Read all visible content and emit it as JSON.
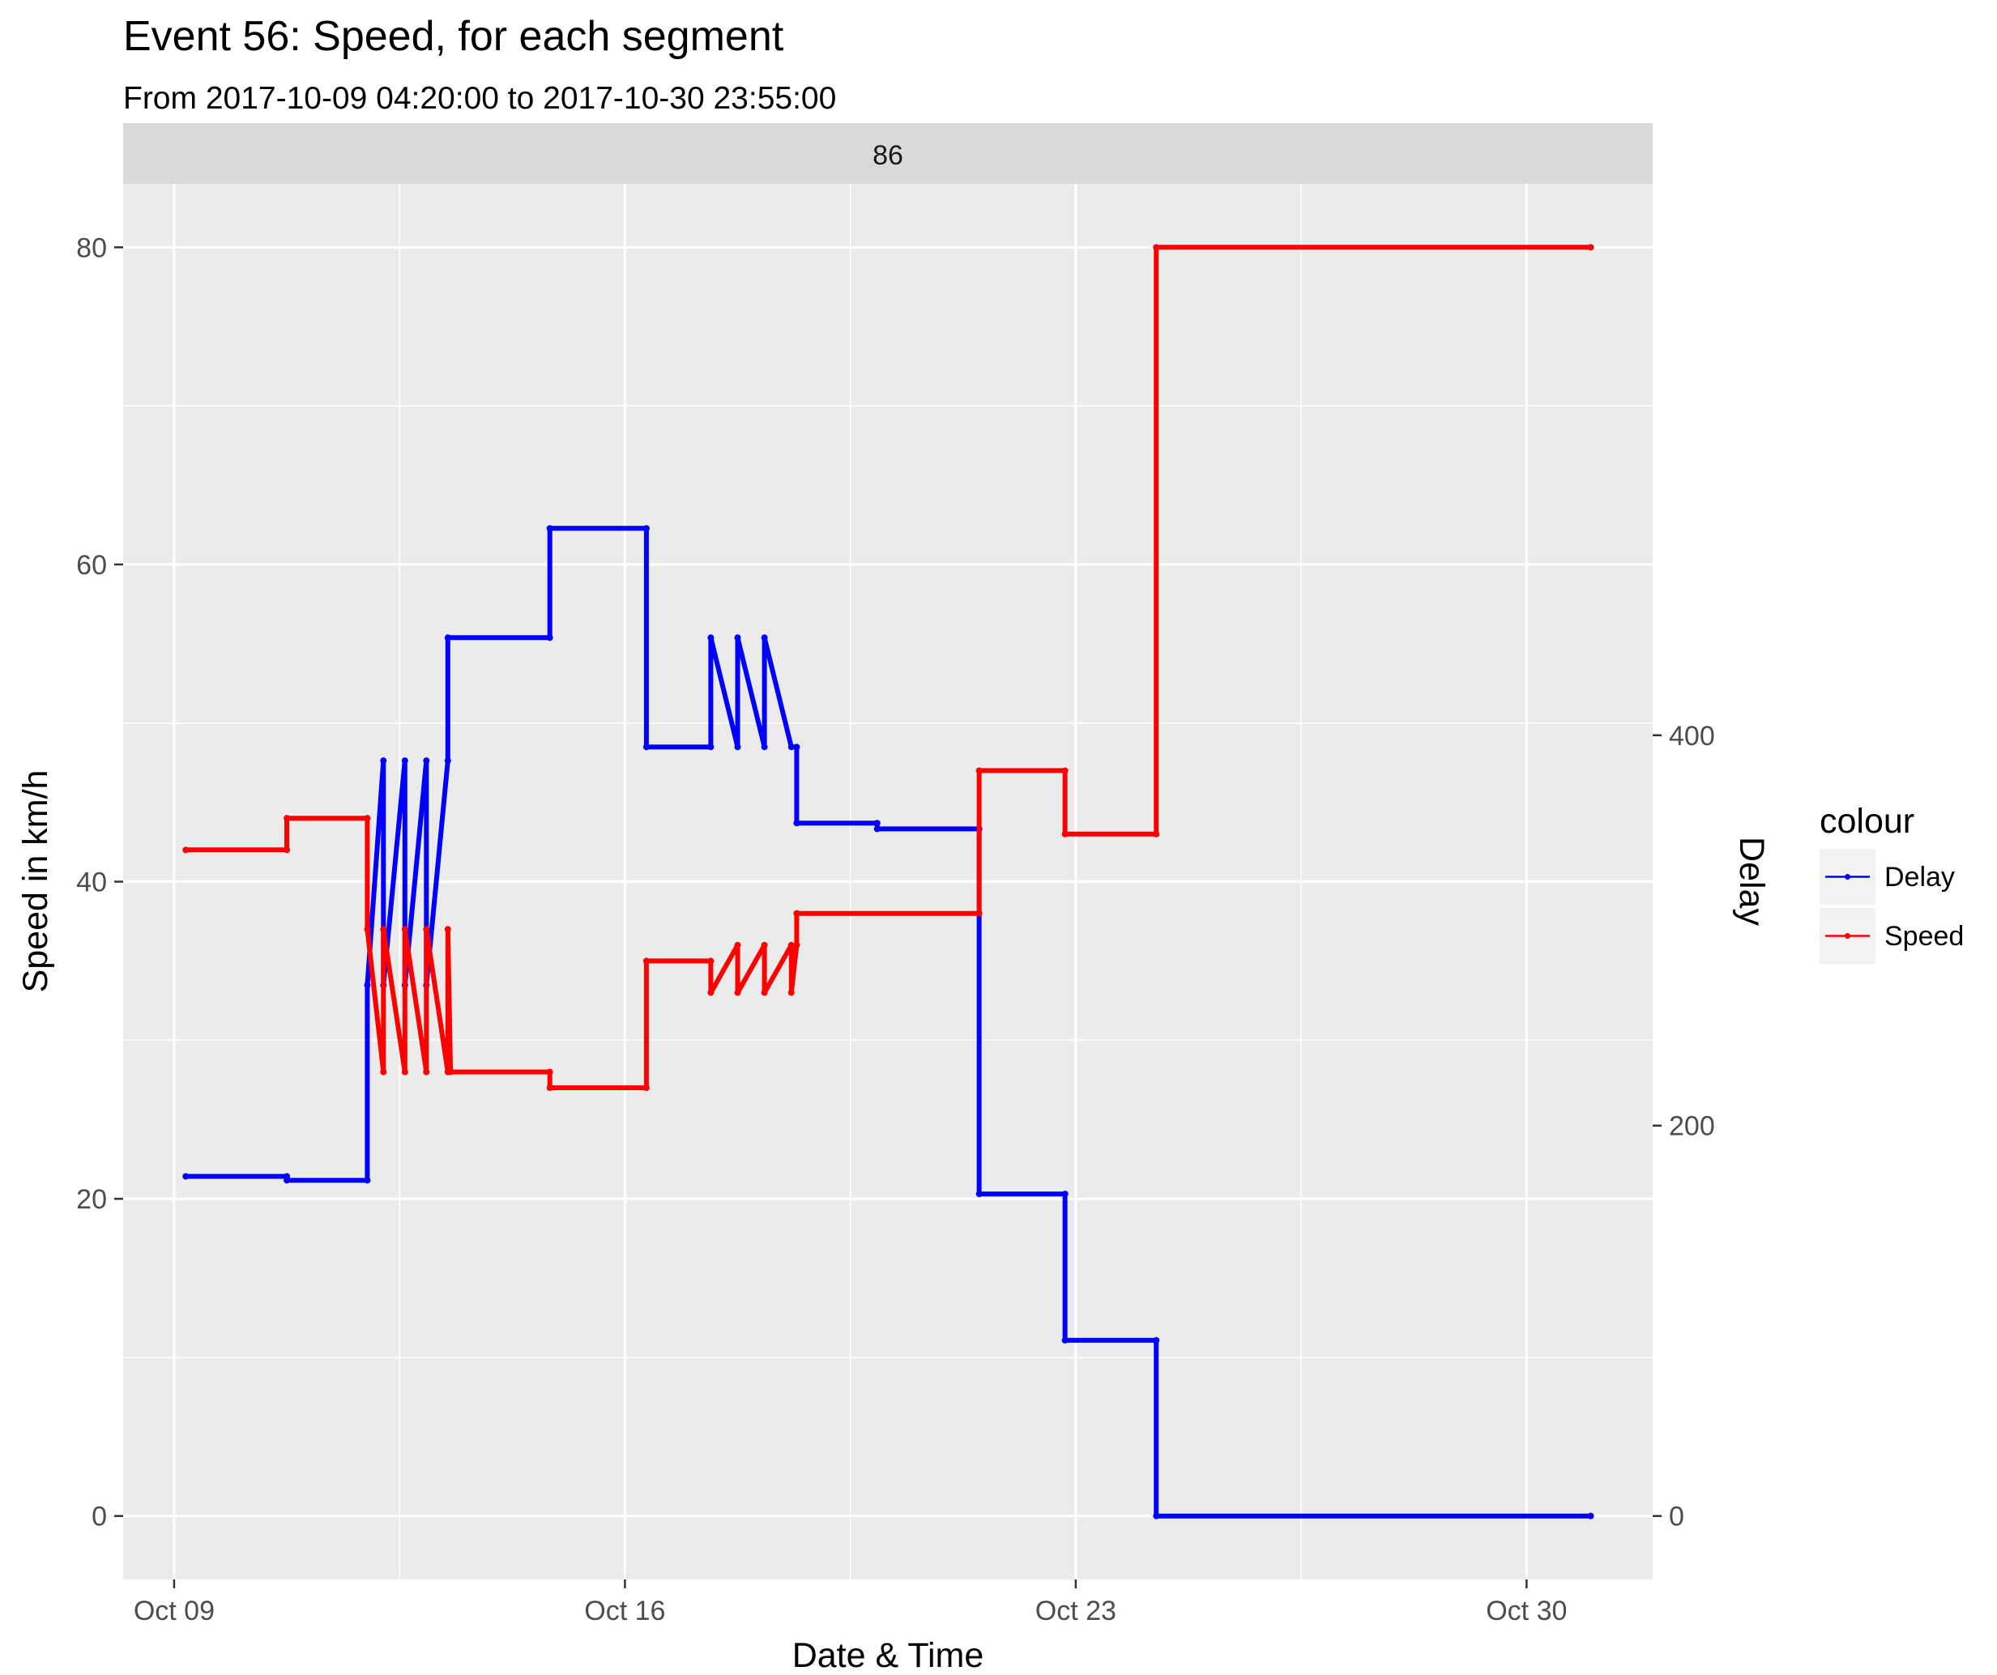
{
  "chart_data": {
    "type": "line",
    "title": "Event 56: Speed, for each segment",
    "subtitle": "From 2017-10-09 04:20:00 to 2017-10-30 23:55:00",
    "facet_label": "86",
    "xlabel": "Date & Time",
    "ylabel": "Speed in km/h",
    "y2label": "Delay",
    "x_ticks": [
      "Oct 09",
      "Oct 16",
      "Oct 23",
      "Oct 30"
    ],
    "x_tick_dates": [
      "2017-10-09",
      "2017-10-16",
      "2017-10-23",
      "2017-10-30"
    ],
    "xlim": [
      "2017-10-08 05:00",
      "2017-10-31 23:00"
    ],
    "y_ticks": [
      "0",
      "20",
      "40",
      "60",
      "80"
    ],
    "ylim": [
      -4,
      84
    ],
    "y2_ticks": [
      "0",
      "200",
      "400"
    ],
    "y2lim": [
      -32.5,
      682.5
    ],
    "grid": true,
    "legend": {
      "title": "colour",
      "position": "right",
      "entries": [
        {
          "label": "Delay",
          "color": "#0000ff"
        },
        {
          "label": "Speed",
          "color": "#ff0000"
        }
      ]
    },
    "series": [
      {
        "name": "Speed",
        "axis": "left",
        "color": "#ff0000",
        "points": [
          [
            "2017-10-09 04:20",
            42
          ],
          [
            "2017-10-10 18:00",
            42
          ],
          [
            "2017-10-10 18:00",
            44
          ],
          [
            "2017-10-12 00:00",
            44
          ],
          [
            "2017-10-12 00:00",
            37
          ],
          [
            "2017-10-12 06:00",
            28
          ],
          [
            "2017-10-12 06:00",
            37
          ],
          [
            "2017-10-12 14:00",
            28
          ],
          [
            "2017-10-12 14:00",
            37
          ],
          [
            "2017-10-12 22:00",
            28
          ],
          [
            "2017-10-12 22:00",
            37
          ],
          [
            "2017-10-13 06:00",
            28
          ],
          [
            "2017-10-13 06:00",
            37
          ],
          [
            "2017-10-13 07:00",
            28
          ],
          [
            "2017-10-14 20:00",
            28
          ],
          [
            "2017-10-14 20:00",
            27
          ],
          [
            "2017-10-16 08:00",
            27
          ],
          [
            "2017-10-16 08:00",
            35
          ],
          [
            "2017-10-17 08:00",
            35
          ],
          [
            "2017-10-17 08:00",
            33
          ],
          [
            "2017-10-17 18:00",
            36
          ],
          [
            "2017-10-17 18:00",
            33
          ],
          [
            "2017-10-18 04:00",
            36
          ],
          [
            "2017-10-18 04:00",
            33
          ],
          [
            "2017-10-18 14:00",
            36
          ],
          [
            "2017-10-18 14:00",
            33
          ],
          [
            "2017-10-18 16:00",
            36
          ],
          [
            "2017-10-18 16:00",
            38
          ],
          [
            "2017-10-21 12:00",
            38
          ],
          [
            "2017-10-21 12:00",
            47
          ],
          [
            "2017-10-22 20:00",
            47
          ],
          [
            "2017-10-22 20:00",
            43
          ],
          [
            "2017-10-24 06:00",
            43
          ],
          [
            "2017-10-24 06:00",
            80
          ],
          [
            "2017-10-30 23:55",
            80
          ]
        ]
      },
      {
        "name": "Delay",
        "axis": "right",
        "color": "#0000ff",
        "points": [
          [
            "2017-10-09 04:20",
            174
          ],
          [
            "2017-10-10 18:00",
            174
          ],
          [
            "2017-10-10 18:00",
            172
          ],
          [
            "2017-10-12 00:00",
            172
          ],
          [
            "2017-10-12 00:00",
            272
          ],
          [
            "2017-10-12 06:00",
            387
          ],
          [
            "2017-10-12 06:00",
            272
          ],
          [
            "2017-10-12 14:00",
            387
          ],
          [
            "2017-10-12 14:00",
            272
          ],
          [
            "2017-10-12 22:00",
            387
          ],
          [
            "2017-10-12 22:00",
            272
          ],
          [
            "2017-10-13 06:00",
            387
          ],
          [
            "2017-10-13 06:00",
            450
          ],
          [
            "2017-10-14 20:00",
            450
          ],
          [
            "2017-10-14 20:00",
            506
          ],
          [
            "2017-10-16 08:00",
            506
          ],
          [
            "2017-10-16 08:00",
            394
          ],
          [
            "2017-10-17 08:00",
            394
          ],
          [
            "2017-10-17 08:00",
            450
          ],
          [
            "2017-10-17 18:00",
            394
          ],
          [
            "2017-10-17 18:00",
            450
          ],
          [
            "2017-10-18 04:00",
            394
          ],
          [
            "2017-10-18 04:00",
            450
          ],
          [
            "2017-10-18 14:00",
            394
          ],
          [
            "2017-10-18 16:00",
            394
          ],
          [
            "2017-10-18 16:00",
            355
          ],
          [
            "2017-10-19 22:00",
            355
          ],
          [
            "2017-10-19 22:00",
            352
          ],
          [
            "2017-10-21 12:00",
            352
          ],
          [
            "2017-10-21 12:00",
            165
          ],
          [
            "2017-10-22 20:00",
            165
          ],
          [
            "2017-10-22 20:00",
            90
          ],
          [
            "2017-10-24 06:00",
            90
          ],
          [
            "2017-10-24 06:00",
            0
          ],
          [
            "2017-10-30 23:55",
            0
          ]
        ]
      }
    ]
  }
}
